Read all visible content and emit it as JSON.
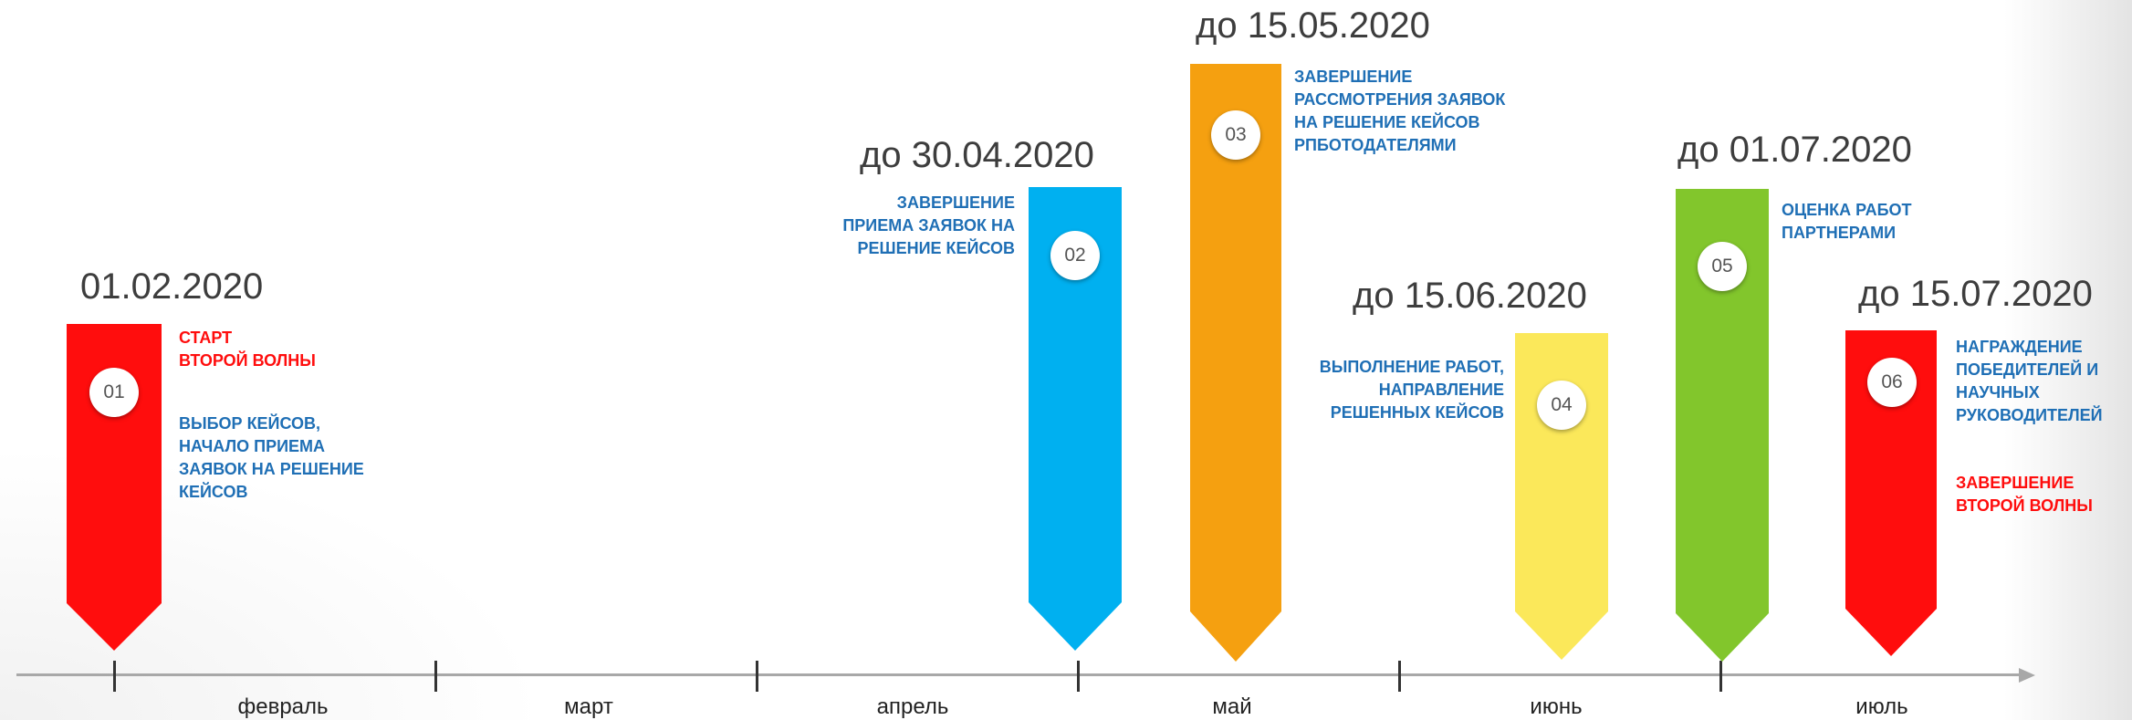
{
  "colors": {
    "red": "#ff0d0d",
    "blue": "#00b0f0",
    "orange": "#f5a010",
    "yellow": "#fbe85a",
    "green": "#82c62c",
    "text_blue": "#1f6fb5",
    "axis": "#a8a8a8"
  },
  "axis": {
    "months": [
      "февраль",
      "март",
      "апрель",
      "май",
      "июнь",
      "июль"
    ]
  },
  "milestones": [
    {
      "number": "01",
      "date": "01.02.2020",
      "color": "#ff0d0d",
      "title": "СТАРТ\nВТОРОЙ ВОЛНЫ",
      "description": "ВЫБОР КЕЙСОВ,\nНАЧАЛО ПРИЕМА\nЗАЯВОК НА РЕШЕНИЕ\nКЕЙСОВ"
    },
    {
      "number": "02",
      "date": "до 30.04.2020",
      "color": "#00b0f0",
      "description": "ЗАВЕРШЕНИЕ\nПРИЕМА ЗАЯВОК НА\nРЕШЕНИЕ КЕЙСОВ"
    },
    {
      "number": "03",
      "date": "до 15.05.2020",
      "color": "#f5a010",
      "description": "ЗАВЕРШЕНИЕ\nРАССМОТРЕНИЯ ЗАЯВОК\nНА РЕШЕНИЕ КЕЙСОВ\nРПБОТОДАТЕЛЯМИ"
    },
    {
      "number": "04",
      "date": "до 15.06.2020",
      "color": "#fbe85a",
      "description": "ВЫПОЛНЕНИЕ РАБОТ,\nНАПРАВЛЕНИЕ\nРЕШЕННЫХ КЕЙСОВ"
    },
    {
      "number": "05",
      "date": "до 01.07.2020",
      "color": "#82c62c",
      "description": "ОЦЕНКА РАБОТ\nПАРТНЕРАМИ"
    },
    {
      "number": "06",
      "date": "до 15.07.2020",
      "color": "#ff0d0d",
      "description": "НАГРАЖДЕНИЕ\nПОБЕДИТЕЛЕЙ И\nНАУЧНЫХ\nРУКОВОДИТЕЛЕЙ",
      "title": "ЗАВЕРШЕНИЕ\nВТОРОЙ ВОЛНЫ"
    }
  ]
}
